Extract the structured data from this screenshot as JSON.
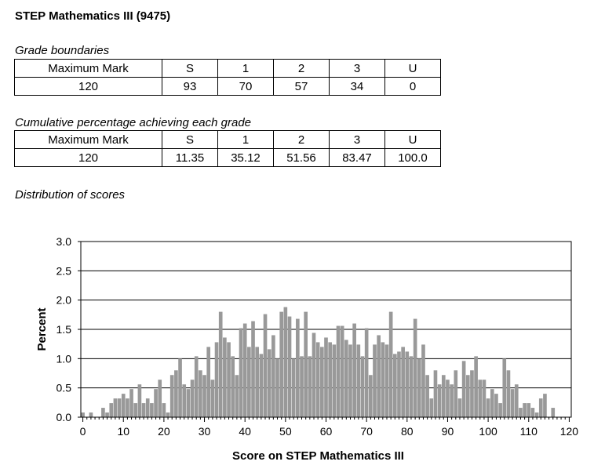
{
  "title": "STEP Mathematics III (9475)",
  "grade_boundaries": {
    "heading": "Grade boundaries",
    "headers": [
      "Maximum Mark",
      "S",
      "1",
      "2",
      "3",
      "U"
    ],
    "values": [
      "120",
      "93",
      "70",
      "57",
      "34",
      "0"
    ]
  },
  "cumulative": {
    "heading": "Cumulative percentage achieving each grade",
    "headers": [
      "Maximum Mark",
      "S",
      "1",
      "2",
      "3",
      "U"
    ],
    "values": [
      "120",
      "11.35",
      "35.12",
      "51.56",
      "83.47",
      "100.0"
    ]
  },
  "distribution": {
    "heading": "Distribution of scores"
  },
  "colors": {
    "bar": "#999999",
    "grid": "#000000"
  },
  "chart_data": {
    "type": "bar",
    "title": "",
    "xlabel": "Score on STEP Mathematics III",
    "ylabel": "Percent",
    "xlim": [
      0,
      120
    ],
    "ylim": [
      0,
      3.0
    ],
    "grid": true,
    "legend": "none",
    "x_ticks": [
      "0",
      "10",
      "20",
      "30",
      "40",
      "50",
      "60",
      "70",
      "80",
      "90",
      "100",
      "110",
      "120"
    ],
    "y_ticks": [
      "0.0",
      "0.5",
      "1.0",
      "1.5",
      "2.0",
      "2.5",
      "3.0"
    ],
    "x": [
      0,
      1,
      2,
      3,
      4,
      5,
      6,
      7,
      8,
      9,
      10,
      11,
      12,
      13,
      14,
      15,
      16,
      17,
      18,
      19,
      20,
      21,
      22,
      23,
      24,
      25,
      26,
      27,
      28,
      29,
      30,
      31,
      32,
      33,
      34,
      35,
      36,
      37,
      38,
      39,
      40,
      41,
      42,
      43,
      44,
      45,
      46,
      47,
      48,
      49,
      50,
      51,
      52,
      53,
      54,
      55,
      56,
      57,
      58,
      59,
      60,
      61,
      62,
      63,
      64,
      65,
      66,
      67,
      68,
      69,
      70,
      71,
      72,
      73,
      74,
      75,
      76,
      77,
      78,
      79,
      80,
      81,
      82,
      83,
      84,
      85,
      86,
      87,
      88,
      89,
      90,
      91,
      92,
      93,
      94,
      95,
      96,
      97,
      98,
      99,
      100,
      101,
      102,
      103,
      104,
      105,
      106,
      107,
      108,
      109,
      110,
      111,
      112,
      113,
      114,
      115,
      116,
      117,
      118,
      119,
      120
    ],
    "values": [
      0.08,
      0,
      0.08,
      0,
      0,
      0.16,
      0.08,
      0.24,
      0.32,
      0.32,
      0.4,
      0.32,
      0.48,
      0.24,
      0.56,
      0.24,
      0.32,
      0.24,
      0.48,
      0.64,
      0.24,
      0.08,
      0.72,
      0.8,
      1.0,
      0.56,
      0.48,
      0.64,
      1.04,
      0.8,
      0.72,
      1.2,
      0.64,
      1.28,
      1.8,
      1.36,
      1.28,
      1.04,
      0.72,
      1.52,
      1.6,
      1.2,
      1.64,
      1.2,
      1.08,
      1.76,
      1.16,
      1.4,
      1.0,
      1.8,
      1.88,
      1.72,
      1.0,
      1.68,
      1.04,
      1.8,
      1.04,
      1.44,
      1.28,
      1.2,
      1.36,
      1.28,
      1.24,
      1.56,
      1.56,
      1.32,
      1.24,
      1.6,
      1.24,
      1.04,
      1.52,
      0.72,
      1.24,
      1.4,
      1.28,
      1.24,
      1.8,
      1.08,
      1.12,
      1.2,
      1.12,
      1.04,
      1.68,
      1.0,
      1.24,
      0.72,
      0.32,
      0.8,
      0.56,
      0.72,
      0.64,
      0.56,
      0.8,
      0.32,
      0.96,
      0.72,
      0.8,
      1.04,
      0.64,
      0.64,
      0.32,
      0.48,
      0.4,
      0.24,
      1.0,
      0.8,
      0.48,
      0.56,
      0.16,
      0.24,
      0.24,
      0.16,
      0.08,
      0.32,
      0.4,
      0,
      0.16,
      0,
      0,
      0,
      0
    ]
  }
}
